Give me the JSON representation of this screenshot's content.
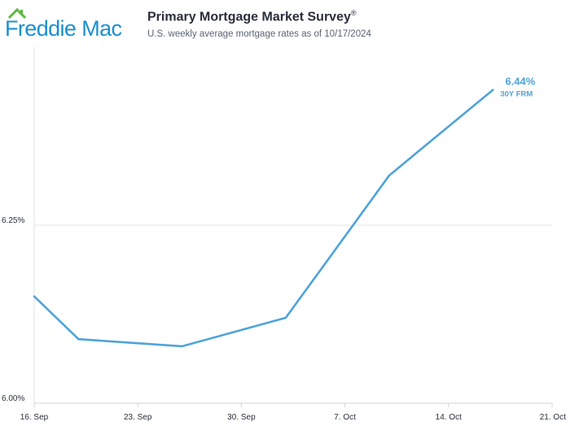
{
  "brand": {
    "name": "Freddie Mac",
    "color": "#1b8fd0",
    "house_color": "#5eb840"
  },
  "header": {
    "title": "Primary Mortgage Market Survey",
    "title_mark": "®",
    "subtitle": "U.S. weekly average mortgage rates as of 10/17/2024"
  },
  "chart_data": {
    "type": "line",
    "x_tick_labels": [
      "16. Sep",
      "23. Sep",
      "30. Sep",
      "7. Oct",
      "14. Oct",
      "21. Oct"
    ],
    "x_ticks": [
      "2024-09-16",
      "2024-09-23",
      "2024-09-30",
      "2024-10-07",
      "2024-10-14",
      "2024-10-21"
    ],
    "xlim": [
      "2024-09-16",
      "2024-10-21"
    ],
    "y_tick_labels": [
      "6.00%",
      "6.25%"
    ],
    "y_ticks": [
      6.0,
      6.25
    ],
    "ylim": [
      6.0,
      6.5
    ],
    "grid": "horizontal",
    "series": [
      {
        "name": "30Y FRM",
        "color": "#4fa3d9",
        "x": [
          "2024-09-16",
          "2024-09-19",
          "2024-09-26",
          "2024-10-03",
          "2024-10-10",
          "2024-10-17"
        ],
        "y": [
          6.15,
          6.09,
          6.08,
          6.12,
          6.32,
          6.44
        ]
      }
    ],
    "annotation": {
      "value": "6.44%",
      "label": "30Y FRM"
    }
  }
}
